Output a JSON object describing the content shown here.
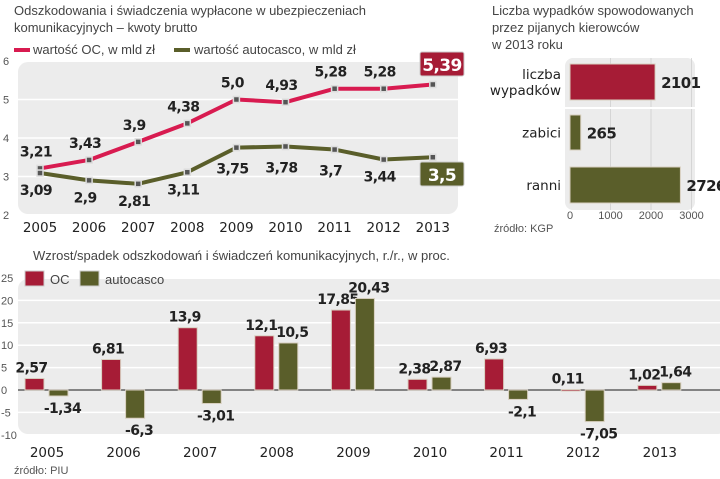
{
  "colors": {
    "oc": "#a61c36",
    "autocasco": "#5a5e2a",
    "line_oc": "#d81b50",
    "plot_bg": "#ececec"
  },
  "chart_data": [
    {
      "type": "line",
      "title": [
        "Odszkodowania i świadczenia wypłacone w ubezpieczeniach",
        "komunikacyjnych – kwoty brutto"
      ],
      "categories": [
        "2005",
        "2006",
        "2007",
        "2008",
        "2009",
        "2010",
        "2011",
        "2012",
        "2013"
      ],
      "series": [
        {
          "name": "wartość OC, w mld zł",
          "values": [
            3.21,
            3.43,
            3.9,
            4.38,
            5.0,
            4.93,
            5.28,
            5.28,
            5.39
          ],
          "labels": [
            "3,21",
            "3,43",
            "3,9",
            "4,38",
            "5,0",
            "4,93",
            "5,28",
            "5,28",
            "5,39"
          ]
        },
        {
          "name": "wartość autocasco, w mld zł",
          "values": [
            3.09,
            2.9,
            2.81,
            3.11,
            3.75,
            3.78,
            3.7,
            3.44,
            3.5
          ],
          "labels": [
            "3,09",
            "2,9",
            "2,81",
            "3,11",
            "3,75",
            "3,78",
            "3,7",
            "3,44",
            "3,5"
          ]
        }
      ],
      "yticks": [
        "2",
        "3",
        "4",
        "5",
        "6"
      ],
      "ylim": [
        2,
        6
      ],
      "grid": true,
      "legend": "top"
    },
    {
      "type": "bar",
      "orientation": "horizontal",
      "title": [
        "Liczba wypadków spowodowanych",
        "przez pijanych kierowców",
        "w 2013 roku"
      ],
      "categories": [
        [
          "liczba",
          "wypadków"
        ],
        [
          "zabici"
        ],
        [
          "ranni"
        ]
      ],
      "values": [
        2101,
        265,
        2726
      ],
      "labels": [
        "2101",
        "265",
        "2726"
      ],
      "xticks": [
        "0",
        "1000",
        "2000",
        "3000"
      ],
      "xlim": [
        0,
        3000
      ],
      "source": "źródło: KGP"
    },
    {
      "type": "bar",
      "title": "Wzrost/spadek odszkodowań i świadczeń komunikacyjnych, r./r., w proc.",
      "categories": [
        "2005",
        "2006",
        "2007",
        "2008",
        "2009",
        "2010",
        "2011",
        "2012",
        "2013"
      ],
      "series": [
        {
          "name": "OC",
          "values": [
            2.57,
            6.81,
            13.9,
            12.1,
            17.85,
            2.38,
            6.93,
            0.11,
            1.02
          ],
          "labels": [
            "2,57",
            "6,81",
            "13,9",
            "12,1",
            "17,85",
            "2,38",
            "6,93",
            "0,11",
            "1,02"
          ]
        },
        {
          "name": "autocasco",
          "values": [
            -1.34,
            -6.3,
            -3.01,
            10.5,
            20.43,
            2.87,
            -2.1,
            -7.05,
            1.64
          ],
          "labels": [
            "-1,34",
            "-6,3",
            "-3,01",
            "10,5",
            "20,43",
            "2,87",
            "-2,1",
            "-7,05",
            "1,64"
          ]
        }
      ],
      "yticks": [
        "-10",
        "-5",
        "0",
        "5",
        "10",
        "15",
        "20",
        "25"
      ],
      "ylim": [
        -10,
        25
      ],
      "grid": true,
      "legend": "top-left",
      "source": "źródło: PIU"
    }
  ]
}
